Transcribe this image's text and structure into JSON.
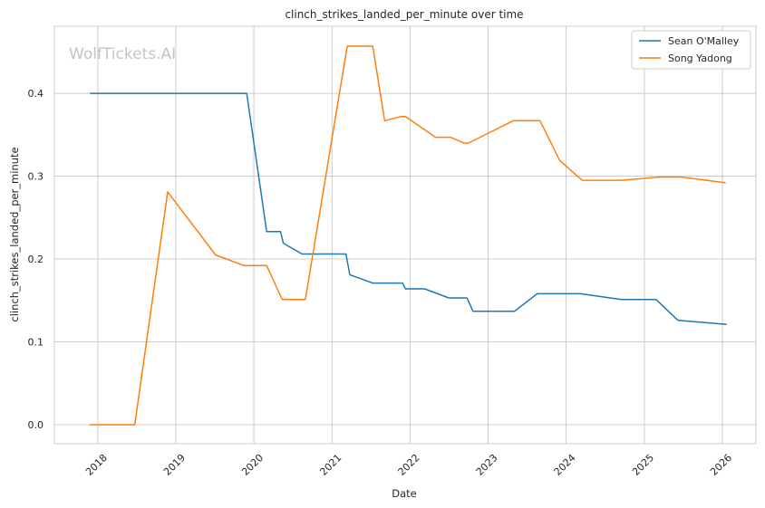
{
  "chart_data": {
    "type": "line",
    "title": "clinch_strikes_landed_per_minute over time",
    "xlabel": "Date",
    "ylabel": "clinch_strikes_landed_per_minute",
    "watermark": "WolfTickets.AI",
    "xlim": [
      "2017-06-12",
      "2026-06-07"
    ],
    "ylim": [
      -0.023,
      0.481
    ],
    "x_ticks": [
      "2018",
      "2019",
      "2020",
      "2021",
      "2022",
      "2023",
      "2024",
      "2025",
      "2026"
    ],
    "y_ticks": [
      "0.0",
      "0.1",
      "0.2",
      "0.3",
      "0.4"
    ],
    "grid": true,
    "legend_position": "top-right",
    "series": [
      {
        "name": "Sean O'Malley",
        "color": "#1f77b4",
        "x": [
          "2017-11-26",
          "2019-11-29",
          "2020-03-01",
          "2020-05-05",
          "2020-05-18",
          "2020-08-14",
          "2021-03-07",
          "2021-03-25",
          "2021-07-10",
          "2021-11-27",
          "2021-12-10",
          "2022-03-10",
          "2022-07-01",
          "2022-09-24",
          "2022-10-22",
          "2023-05-05",
          "2023-08-19",
          "2024-03-09",
          "2024-09-15",
          "2025-02-25",
          "2025-06-07",
          "2026-01-21"
        ],
        "y": [
          0.4,
          0.4,
          0.233,
          0.233,
          0.219,
          0.206,
          0.206,
          0.181,
          0.171,
          0.171,
          0.164,
          0.164,
          0.153,
          0.153,
          0.137,
          0.137,
          0.158,
          0.158,
          0.151,
          0.151,
          0.126,
          0.121
        ]
      },
      {
        "name": "Song Yadong",
        "color": "#ff7f0e",
        "x": [
          "2017-11-25",
          "2018-06-23",
          "2018-11-24",
          "2019-07-06",
          "2019-11-16",
          "2020-03-01",
          "2020-05-13",
          "2020-08-29",
          "2021-03-13",
          "2021-07-10",
          "2021-09-04",
          "2021-11-20",
          "2021-12-11",
          "2022-04-30",
          "2022-07-09",
          "2022-09-10",
          "2022-10-01",
          "2023-04-29",
          "2023-09-01",
          "2023-12-02",
          "2024-03-16",
          "2024-09-14",
          "2025-03-15",
          "2025-06-21",
          "2026-01-17"
        ],
        "y": [
          0.0,
          0.0,
          0.281,
          0.205,
          0.192,
          0.192,
          0.151,
          0.151,
          0.457,
          0.457,
          0.367,
          0.372,
          0.372,
          0.347,
          0.347,
          0.34,
          0.34,
          0.367,
          0.367,
          0.319,
          0.295,
          0.295,
          0.299,
          0.299,
          0.292
        ]
      }
    ]
  }
}
